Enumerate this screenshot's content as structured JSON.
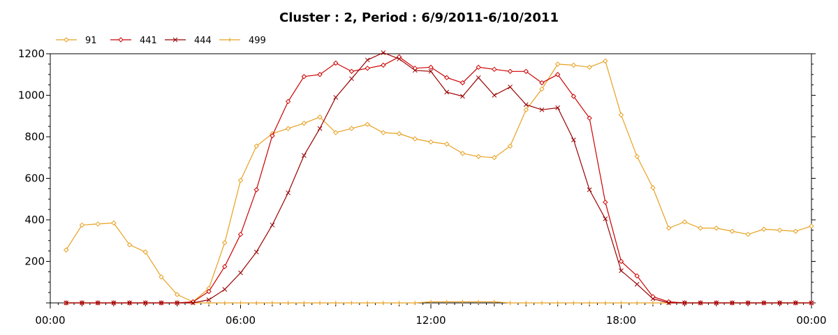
{
  "chart_data": {
    "type": "line",
    "title": "Cluster : 2, Period : 6/9/2011-6/10/2011",
    "xlabel": "",
    "ylabel": "",
    "x_tick_labels": [
      "00:00",
      "06:00",
      "12:00",
      "18:00",
      "00:00"
    ],
    "x_range_hours": [
      0,
      24
    ],
    "ylim": [
      0,
      1200
    ],
    "y_ticks": [
      200,
      400,
      600,
      800,
      1000,
      1200
    ],
    "grid": "dotted vertical",
    "legend_position": "top-left",
    "x_hours": [
      0.5,
      1,
      1.5,
      2,
      2.5,
      3,
      3.5,
      4,
      4.5,
      5,
      5.5,
      6,
      6.5,
      7,
      7.5,
      8,
      8.5,
      9,
      9.5,
      10,
      10.5,
      11,
      11.5,
      12,
      12.5,
      13,
      13.5,
      14,
      14.5,
      15,
      15.5,
      16,
      16.5,
      17,
      17.5,
      18,
      18.5,
      19,
      19.5,
      20,
      20.5,
      21,
      21.5,
      22,
      22.5,
      23,
      23.5,
      24
    ],
    "series": [
      {
        "name": "91",
        "color": "#e8a020",
        "marker": "diamond",
        "values": [
          255,
          375,
          380,
          385,
          280,
          245,
          125,
          40,
          5,
          70,
          290,
          590,
          755,
          815,
          840,
          865,
          895,
          820,
          840,
          860,
          820,
          815,
          790,
          775,
          765,
          720,
          705,
          700,
          755,
          930,
          1030,
          1150,
          1145,
          1135,
          1165,
          905,
          705,
          555,
          360,
          390,
          360,
          360,
          345,
          330,
          355,
          350,
          345,
          370
        ]
      },
      {
        "name": "441",
        "color": "#cc0000",
        "marker": "diamond",
        "values": [
          0,
          0,
          0,
          0,
          0,
          0,
          0,
          0,
          5,
          55,
          175,
          330,
          545,
          805,
          970,
          1090,
          1100,
          1155,
          1115,
          1130,
          1145,
          1185,
          1130,
          1135,
          1085,
          1060,
          1135,
          1125,
          1115,
          1115,
          1060,
          1100,
          995,
          890,
          485,
          200,
          130,
          30,
          5,
          0,
          0,
          0,
          0,
          0,
          0,
          0,
          0,
          0
        ]
      },
      {
        "name": "444",
        "color": "#990000",
        "marker": "x",
        "values": [
          0,
          0,
          0,
          0,
          0,
          0,
          0,
          0,
          0,
          15,
          65,
          145,
          245,
          375,
          530,
          710,
          840,
          990,
          1080,
          1170,
          1205,
          1175,
          1120,
          1115,
          1015,
          995,
          1085,
          1000,
          1040,
          955,
          930,
          940,
          785,
          545,
          405,
          155,
          90,
          20,
          0,
          0,
          0,
          0,
          0,
          0,
          0,
          0,
          0,
          0
        ]
      },
      {
        "name": "499",
        "color": "#e8a020",
        "marker": "plus",
        "values": [
          0,
          0,
          0,
          0,
          0,
          0,
          0,
          0,
          0,
          0,
          0,
          0,
          0,
          0,
          0,
          0,
          0,
          0,
          0,
          0,
          0,
          0,
          0,
          5,
          5,
          5,
          5,
          5,
          0,
          0,
          0,
          0,
          0,
          0,
          0,
          0,
          0,
          0,
          0,
          0,
          0,
          0,
          0,
          0,
          0,
          0,
          0,
          0
        ]
      }
    ]
  }
}
